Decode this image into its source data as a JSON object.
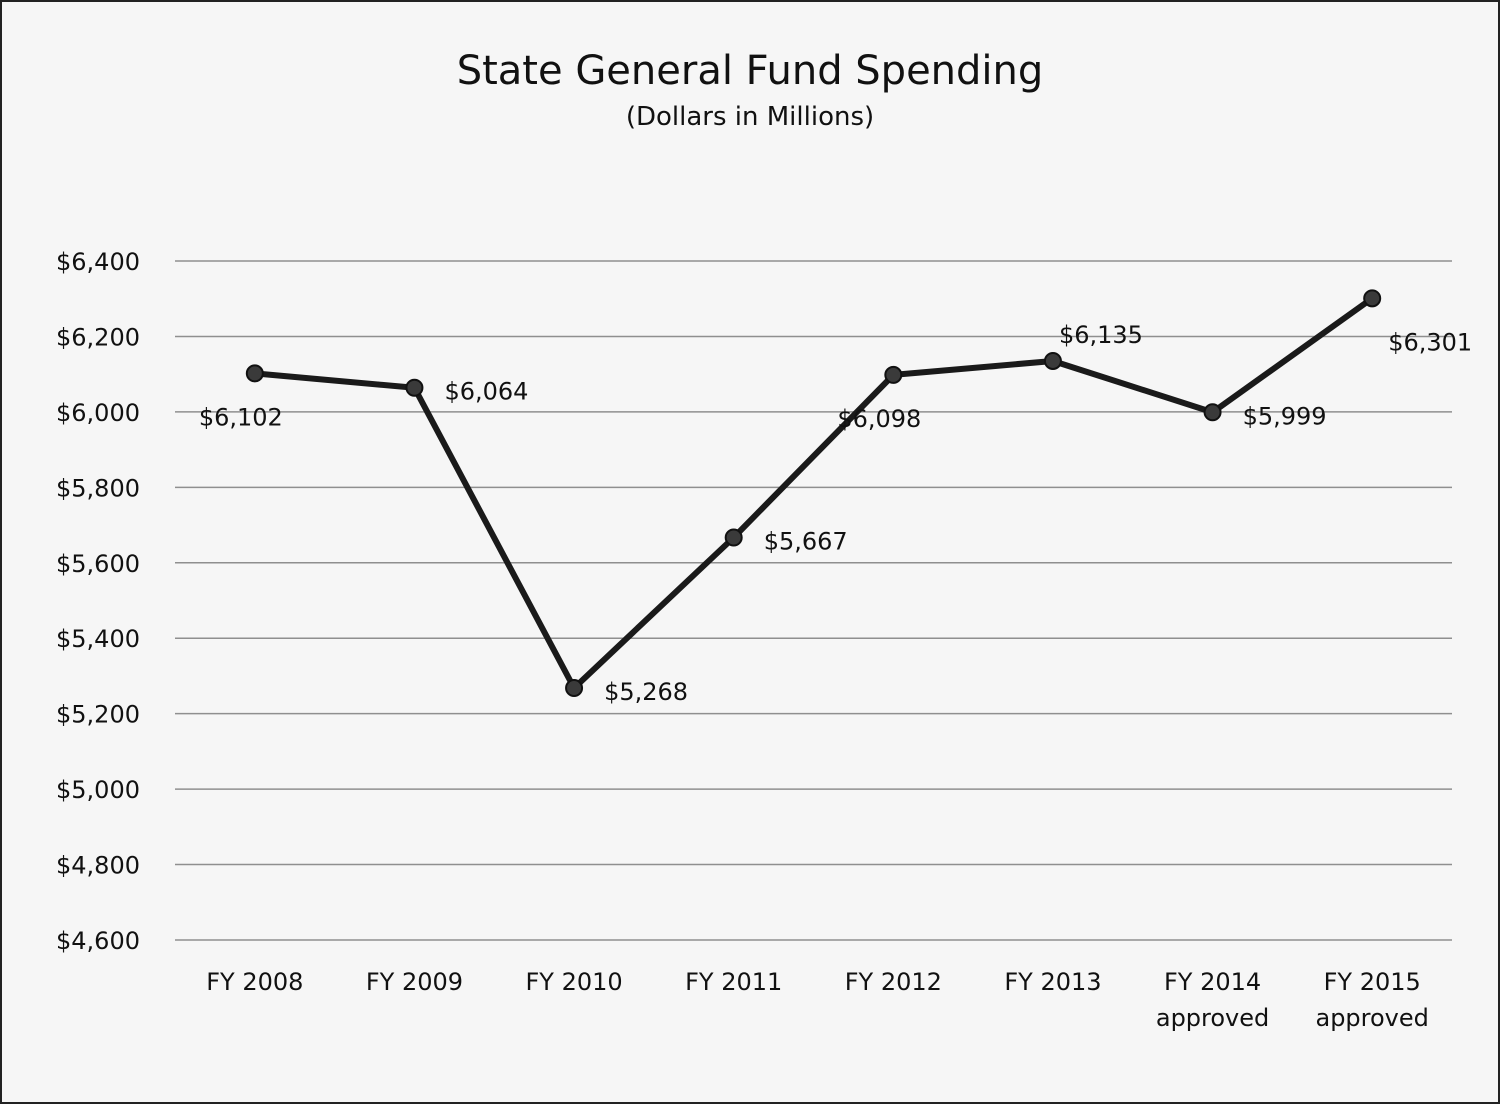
{
  "chart_data": {
    "type": "line",
    "title": "State General Fund Spending",
    "subtitle": "(Dollars in Millions)",
    "xlabel": "",
    "ylabel": "",
    "ylim": [
      4600,
      6400
    ],
    "ytick_step": 200,
    "yticks": [
      "$4,600",
      "$4,800",
      "$5,000",
      "$5,200",
      "$5,400",
      "$5,600",
      "$5,800",
      "$6,000",
      "$6,200",
      "$6,400"
    ],
    "grid": true,
    "categories": [
      [
        "FY 2008"
      ],
      [
        "FY 2009"
      ],
      [
        "FY 2010"
      ],
      [
        "FY 2011"
      ],
      [
        "FY 2012"
      ],
      [
        "FY 2013"
      ],
      [
        "FY 2014",
        "approved"
      ],
      [
        "FY 2015",
        "approved"
      ]
    ],
    "series": [
      {
        "name": "State General Fund Spending",
        "values": [
          6102,
          6064,
          5268,
          5667,
          6098,
          6135,
          5999,
          6301
        ],
        "labels": [
          "$6,102",
          "$6,064",
          "$5,268",
          "$5,667",
          "$6,098",
          "$6,135",
          "$5,999",
          "$6,301"
        ],
        "label_positions": [
          "below",
          "right",
          "right",
          "right",
          "below",
          "above",
          "right",
          "below-right"
        ]
      }
    ]
  }
}
